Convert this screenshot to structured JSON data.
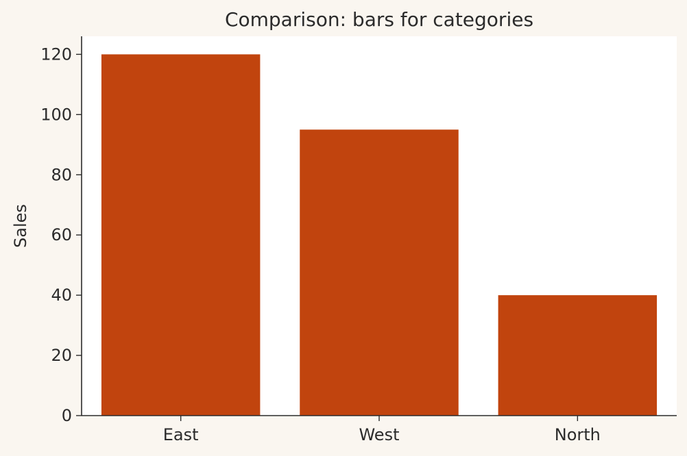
{
  "chart_data": {
    "type": "bar",
    "title": "Comparison: bars for categories",
    "xlabel": "",
    "ylabel": "Sales",
    "categories": [
      "East",
      "West",
      "North"
    ],
    "values": [
      120,
      95,
      40
    ],
    "ylim": [
      0,
      126
    ],
    "yticks": [
      0,
      20,
      40,
      60,
      80,
      100,
      120
    ],
    "grid": false,
    "colors": {
      "background": "#faf6f0",
      "plot_background": "#ffffff",
      "bar": "#c1440e",
      "text": "#2b2b2b",
      "axis": "#2b2b2b"
    }
  }
}
